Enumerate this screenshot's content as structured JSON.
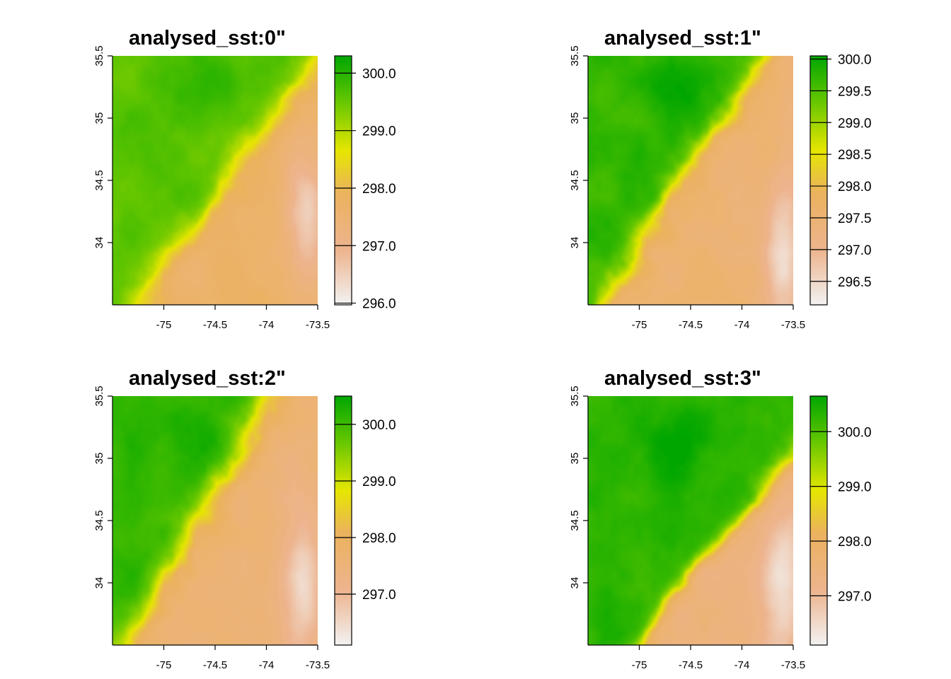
{
  "colors": {
    "ramp": [
      "#F2F2F2",
      "#EDB48E",
      "#EBB25E",
      "#E6E600",
      "#63C600",
      "#00A600"
    ],
    "ramp_stops": [
      0,
      0.22,
      0.45,
      0.62,
      0.82,
      1
    ]
  },
  "chart_data": [
    {
      "type": "heatmap",
      "title": "analysed_sst:0\"",
      "xlim": [
        -75.5,
        -73.5
      ],
      "ylim": [
        33.5,
        35.5
      ],
      "x_ticks": [
        "-75",
        "-74.5",
        "-74",
        "-73.5"
      ],
      "x_tick_values": [
        -75,
        -74.5,
        -74,
        -73.5
      ],
      "y_ticks": [
        "34",
        "34.5",
        "35",
        "35.5"
      ],
      "y_tick_values": [
        34,
        34.5,
        35,
        35.5
      ],
      "legend": {
        "min": 295.97,
        "max": 300.3,
        "ticks": [
          296.0,
          297.0,
          298.0,
          299.0,
          300.0
        ],
        "labels": [
          "296.0",
          "297.0",
          "298.0",
          "299.0",
          "300.0"
        ]
      },
      "field": {
        "front_x0": -75.2,
        "front_slope": 1.05,
        "front_width": 0.13,
        "warm_core": [
          -74.6,
          35.3
        ],
        "cold_patch": [
          -73.6,
          34.2
        ],
        "hi": 299.6,
        "lo": 296.6
      }
    },
    {
      "type": "heatmap",
      "title": "analysed_sst:1\"",
      "xlim": [
        -75.5,
        -73.5
      ],
      "ylim": [
        33.5,
        35.5
      ],
      "x_ticks": [
        "-75",
        "-74.5",
        "-74",
        "-73.5"
      ],
      "x_tick_values": [
        -75,
        -74.5,
        -74,
        -73.5
      ],
      "y_ticks": [
        "34",
        "34.5",
        "35",
        "35.5"
      ],
      "y_tick_values": [
        34,
        34.5,
        35,
        35.5
      ],
      "legend": {
        "min": 296.13,
        "max": 300.05,
        "ticks": [
          296.5,
          297.0,
          297.5,
          298.0,
          298.5,
          299.0,
          299.5,
          300.0
        ],
        "labels": [
          "296.5",
          "297.0",
          "297.5",
          "298.0",
          "298.5",
          "299.0",
          "299.5",
          "300.0"
        ]
      },
      "field": {
        "front_x0": -75.35,
        "front_slope": 0.95,
        "front_width": 0.12,
        "warm_core": [
          -74.7,
          35.2
        ],
        "cold_patch": [
          -73.6,
          33.9
        ],
        "hi": 299.7,
        "lo": 296.4
      }
    },
    {
      "type": "heatmap",
      "title": "analysed_sst:2\"",
      "xlim": [
        -75.5,
        -73.5
      ],
      "ylim": [
        33.5,
        35.5
      ],
      "x_ticks": [
        "-75",
        "-74.5",
        "-74",
        "-73.5"
      ],
      "x_tick_values": [
        -75,
        -74.5,
        -74,
        -73.5
      ],
      "y_ticks": [
        "34",
        "34.5",
        "35",
        "35.5"
      ],
      "y_tick_values": [
        34,
        34.5,
        35,
        35.5
      ],
      "legend": {
        "min": 296.1,
        "max": 300.5,
        "ticks": [
          297.0,
          298.0,
          299.0,
          300.0
        ],
        "labels": [
          "297.0",
          "298.0",
          "299.0",
          "300.0"
        ]
      },
      "field": {
        "front_x0": -75.3,
        "front_slope": 0.85,
        "front_width": 0.14,
        "warm_core": [
          -74.6,
          35.1
        ],
        "cold_patch": [
          -73.65,
          34.0
        ],
        "hi": 300.1,
        "lo": 296.5
      }
    },
    {
      "type": "heatmap",
      "title": "analysed_sst:3\"",
      "xlim": [
        -75.5,
        -73.5
      ],
      "ylim": [
        33.5,
        35.5
      ],
      "x_ticks": [
        "-75",
        "-74.5",
        "-74",
        "-73.5"
      ],
      "x_tick_values": [
        -75,
        -74.5,
        -74,
        -73.5
      ],
      "y_ticks": [
        "34",
        "34.5",
        "35",
        "35.5"
      ],
      "y_tick_values": [
        34,
        34.5,
        35,
        35.5
      ],
      "legend": {
        "min": 296.1,
        "max": 300.65,
        "ticks": [
          297.0,
          298.0,
          299.0,
          300.0
        ],
        "labels": [
          "297.0",
          "298.0",
          "299.0",
          "300.0"
        ]
      },
      "field": {
        "front_x0": -75.05,
        "front_slope": 1.25,
        "front_width": 0.1,
        "warm_core": [
          -74.6,
          35.1
        ],
        "cold_patch": [
          -73.6,
          34.0
        ],
        "hi": 300.3,
        "lo": 296.4
      }
    }
  ]
}
